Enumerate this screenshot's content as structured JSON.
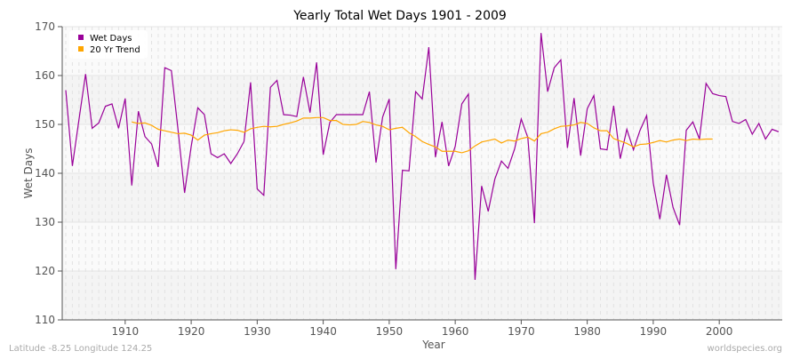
{
  "chart_data": {
    "type": "line",
    "title": "Yearly Total Wet Days 1901 - 2009",
    "xlabel": "Year",
    "ylabel": "Wet Days",
    "xlim": [
      1901,
      2009
    ],
    "ylim": [
      110,
      170
    ],
    "xticks": [
      1910,
      1920,
      1930,
      1940,
      1950,
      1960,
      1970,
      1980,
      1990,
      2000
    ],
    "yticks": [
      110,
      120,
      130,
      140,
      150,
      160,
      170
    ],
    "grid": true,
    "legend_position": "top-left",
    "series": [
      {
        "name": "Wet Days",
        "color": "#990099",
        "start_year": 1901,
        "values": [
          157,
          141.5,
          151,
          160.3,
          149.2,
          150.3,
          153.7,
          154.2,
          149.2,
          155.3,
          137.5,
          152.7,
          147.5,
          146,
          141.3,
          161.6,
          161,
          149,
          136,
          145.5,
          153.4,
          152,
          144,
          143.2,
          144,
          142,
          144,
          146.5,
          158.6,
          136.8,
          135.5,
          157.6,
          159,
          152,
          151.9,
          151.6,
          159.7,
          152.4,
          162.7,
          143.8,
          150.4,
          152,
          152,
          152,
          152,
          152,
          156.7,
          142.2,
          151.5,
          155.2,
          120.4,
          140.6,
          140.5,
          156.7,
          155.2,
          165.8,
          143.3,
          150.5,
          141.5,
          145.5,
          154.2,
          156.2,
          118.2,
          137.4,
          132.2,
          138.8,
          142.5,
          141,
          145,
          151.1,
          147.3,
          129.8,
          168.7,
          156.7,
          161.6,
          163.2,
          145.2,
          155.4,
          143.6,
          153.2,
          155.9,
          145,
          144.8,
          153.8,
          143,
          149,
          144.8,
          148.8,
          151.8,
          138,
          130.6,
          139.7,
          133,
          129.4,
          148.8,
          150.5,
          147,
          158.4,
          156.3,
          155.9,
          155.7,
          150.6,
          150.2,
          151,
          148,
          150.2,
          147,
          149,
          148.5
        ]
      },
      {
        "name": "20 Yr Trend",
        "color": "#ffa500",
        "start_year": 1911,
        "values": [
          150.5,
          150.2,
          150.3,
          149.8,
          149,
          148.7,
          148.4,
          148.1,
          148.2,
          147.8,
          146.8,
          147.8,
          148.1,
          148.3,
          148.7,
          148.9,
          148.8,
          148.4,
          149.1,
          149.4,
          149.6,
          149.5,
          149.6,
          150,
          150.3,
          150.7,
          151.3,
          151.3,
          151.4,
          151.4,
          150.8,
          150.8,
          150,
          149.9,
          150,
          150.6,
          150.4,
          149.9,
          149.6,
          148.9,
          149.2,
          149.4,
          148.3,
          147.5,
          146.5,
          145.9,
          145.4,
          144.5,
          144.5,
          144.5,
          144.2,
          144.6,
          145.6,
          146.4,
          146.7,
          147,
          146.2,
          146.8,
          146.6,
          147.1,
          147.4,
          146.6,
          148.1,
          148.4,
          149.1,
          149.6,
          149.7,
          149.9,
          150.4,
          150.2,
          149.3,
          148.7,
          148.7,
          147.1,
          146.6,
          146.1,
          145.4,
          145.9,
          146,
          146.3,
          146.7,
          146.4,
          146.8,
          147,
          146.7,
          147,
          146.9,
          147,
          147
        ]
      }
    ]
  },
  "footer": {
    "location": "Latitude -8.25 Longitude 124.25",
    "site": "worldspecies.org"
  }
}
